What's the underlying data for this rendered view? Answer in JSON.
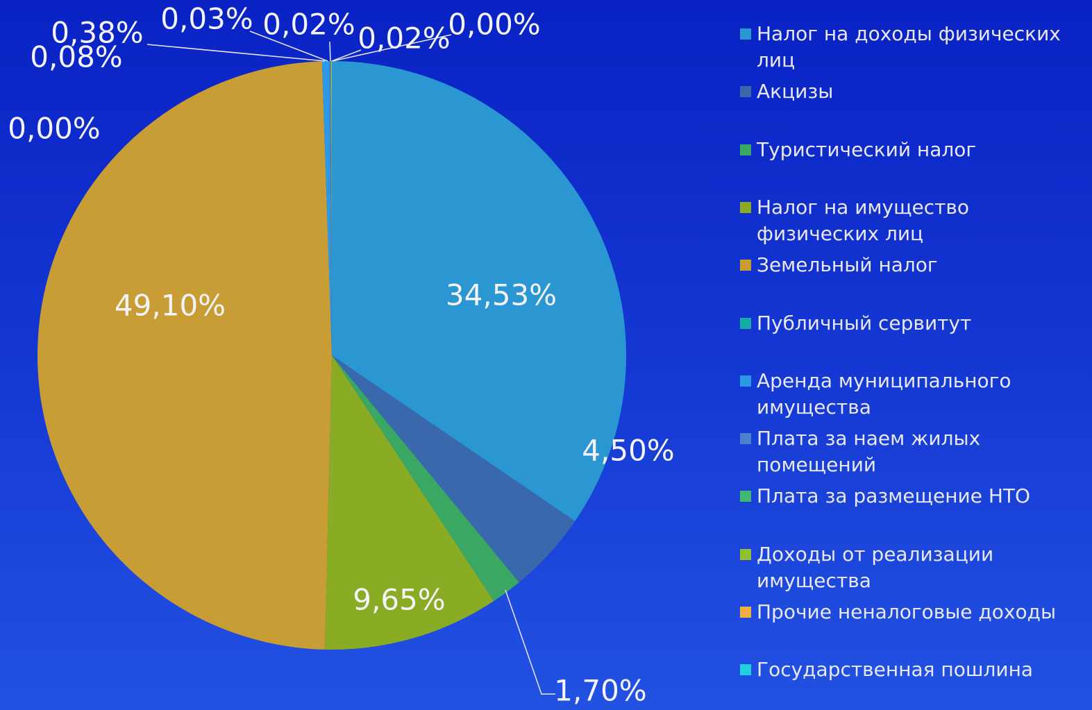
{
  "chart_data": {
    "type": "pie",
    "categories": [
      "Налог на доходы физических лиц",
      "Акцизы",
      "Туристический налог",
      "Налог на имущество физических лиц",
      "Земельный налог",
      "Публичный сервитут",
      "Аренда муниципального имущества",
      "Плата за наем жилых помещений",
      "Плата за размещение НТО",
      "Доходы от реализации имущества",
      "Прочие неналоговые доходы",
      "Государственная пошлина"
    ],
    "values": [
      34.53,
      4.5,
      1.7,
      9.65,
      49.1,
      0.0,
      0.38,
      0.08,
      0.03,
      0.02,
      0.02,
      0.0
    ],
    "value_labels": [
      "34,53%",
      "4,50%",
      "1,70%",
      "9,65%",
      "49,10%",
      "0,00%",
      "0,38%",
      "0,08%",
      "0,03%",
      "0,02%",
      "0,02%",
      "0,00%"
    ],
    "colors": [
      "#2a97d2",
      "#3a68ac",
      "#3aa862",
      "#8aab24",
      "#c99d35",
      "#1aa8a8",
      "#2a9ae8",
      "#4a80d0",
      "#40b870",
      "#90c030",
      "#f0b040",
      "#20d0e0"
    ],
    "legend": "right"
  }
}
